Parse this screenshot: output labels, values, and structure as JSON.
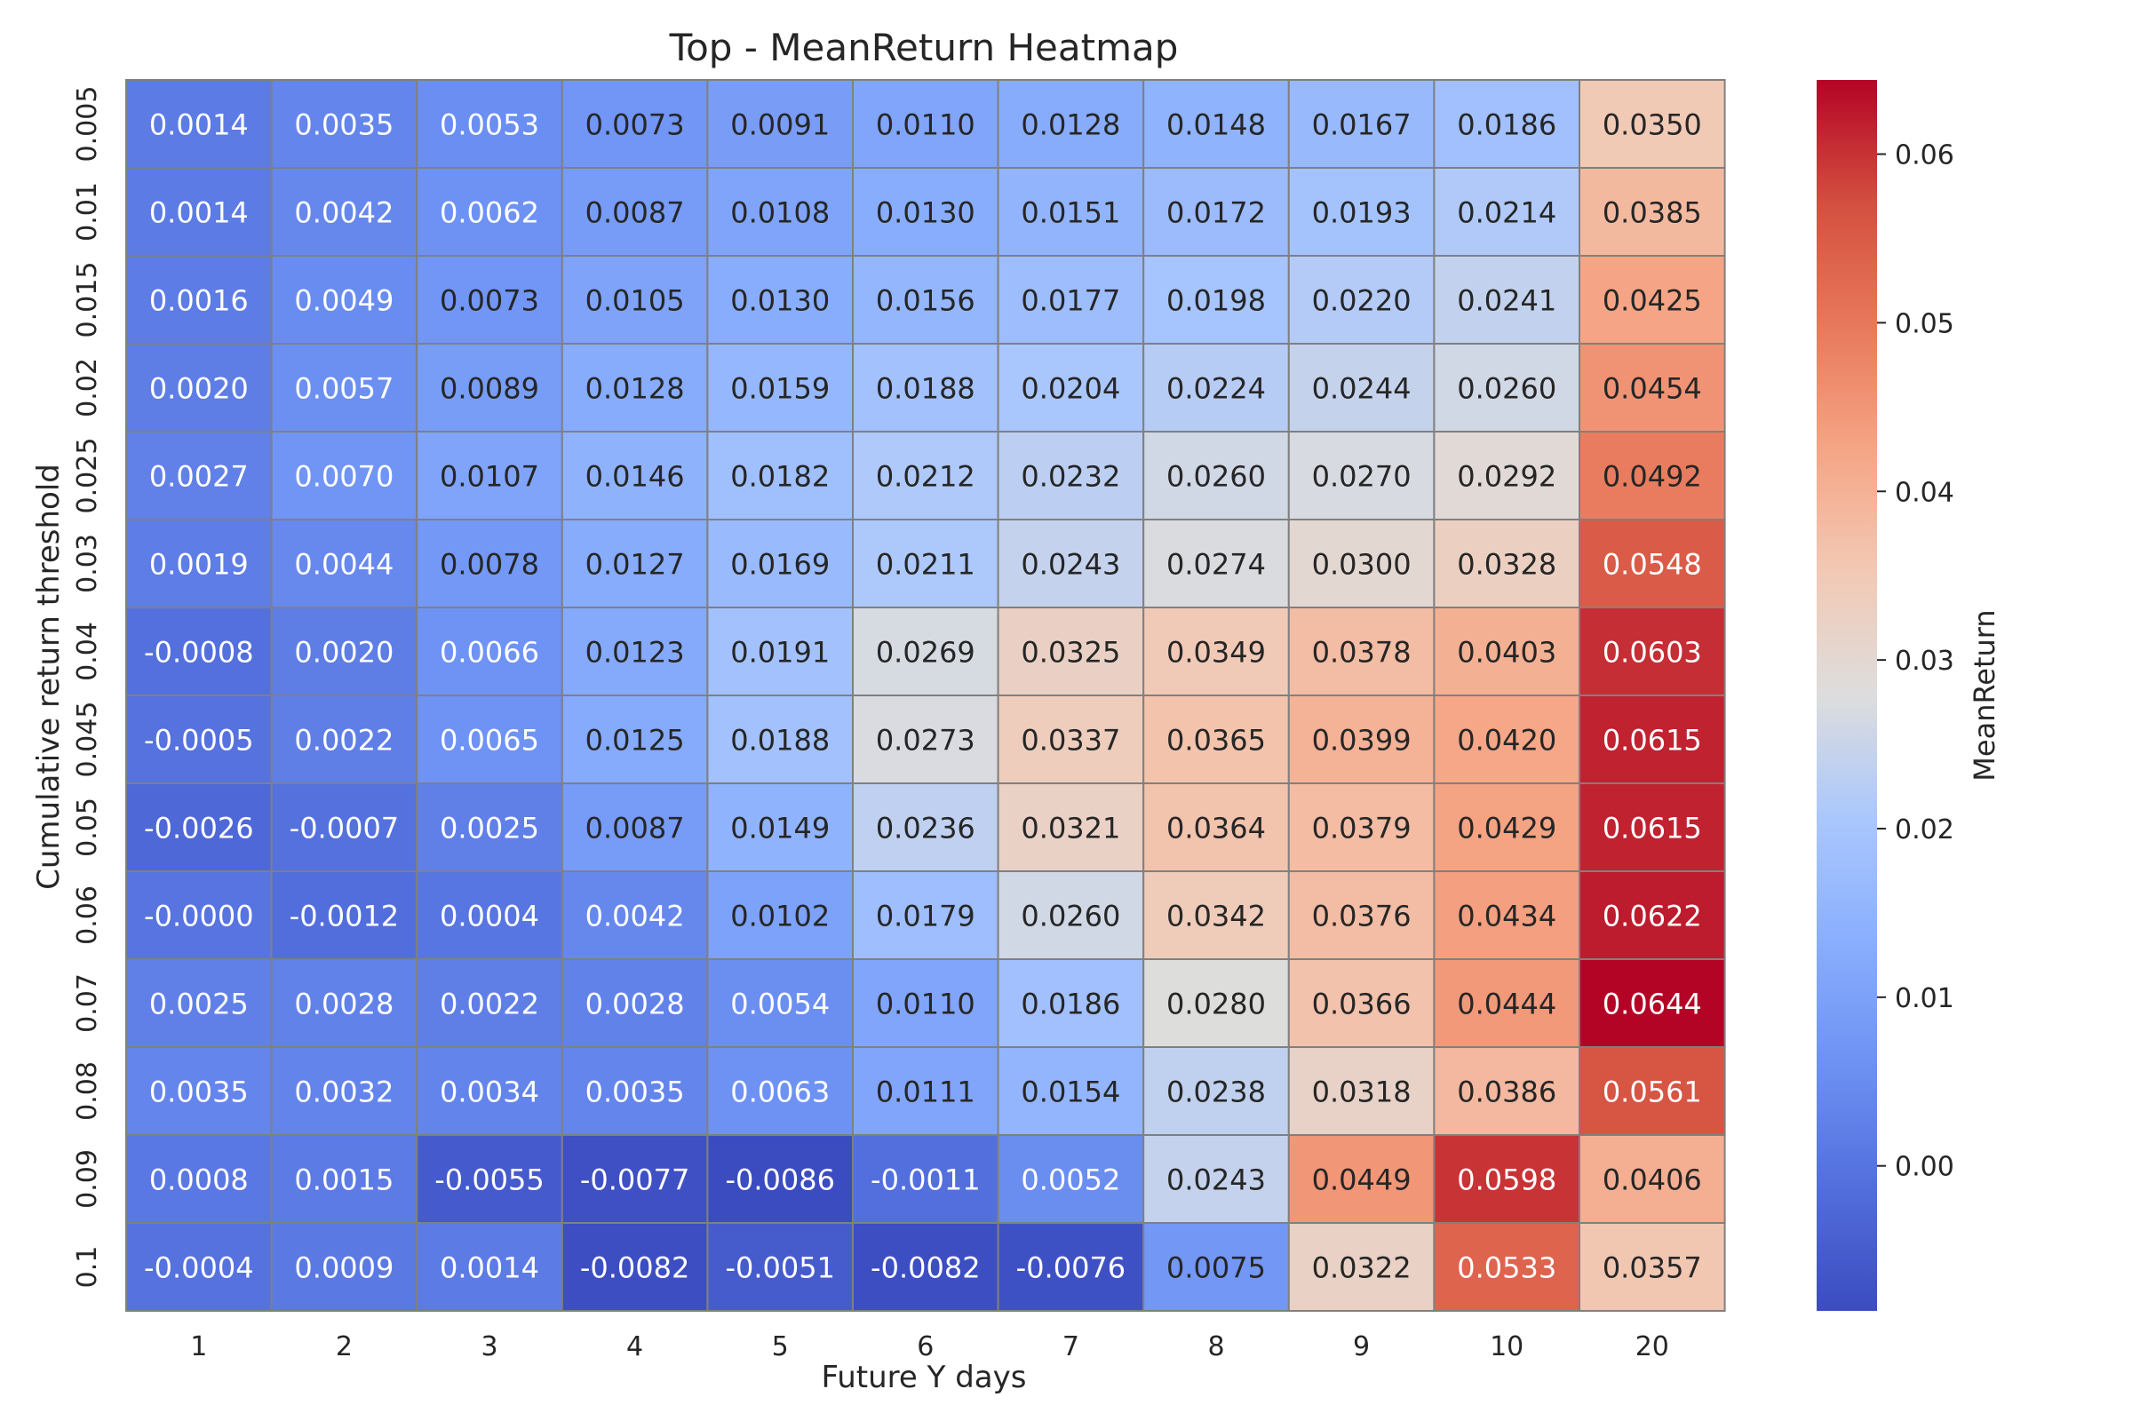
{
  "chart_data": {
    "type": "heatmap",
    "title": "Top - MeanReturn Heatmap",
    "xlabel": "Future Y days",
    "ylabel": "Cumulative return threshold",
    "x_categories": [
      "1",
      "2",
      "3",
      "4",
      "5",
      "6",
      "7",
      "8",
      "9",
      "10",
      "20"
    ],
    "y_categories": [
      "0.005",
      "0.01",
      "0.015",
      "0.02",
      "0.025",
      "0.03",
      "0.04",
      "0.045",
      "0.05",
      "0.06",
      "0.07",
      "0.08",
      "0.09",
      "0.1"
    ],
    "values": [
      [
        0.0014,
        0.0035,
        0.0053,
        0.0073,
        0.0091,
        0.011,
        0.0128,
        0.0148,
        0.0167,
        0.0186,
        0.035
      ],
      [
        0.0014,
        0.0042,
        0.0062,
        0.0087,
        0.0108,
        0.013,
        0.0151,
        0.0172,
        0.0193,
        0.0214,
        0.0385
      ],
      [
        0.0016,
        0.0049,
        0.0073,
        0.0105,
        0.013,
        0.0156,
        0.0177,
        0.0198,
        0.022,
        0.0241,
        0.0425
      ],
      [
        0.002,
        0.0057,
        0.0089,
        0.0128,
        0.0159,
        0.0188,
        0.0204,
        0.0224,
        0.0244,
        0.026,
        0.0454
      ],
      [
        0.0027,
        0.007,
        0.0107,
        0.0146,
        0.0182,
        0.0212,
        0.0232,
        0.026,
        0.027,
        0.0292,
        0.0492
      ],
      [
        0.0019,
        0.0044,
        0.0078,
        0.0127,
        0.0169,
        0.0211,
        0.0243,
        0.0274,
        0.03,
        0.0328,
        0.0548
      ],
      [
        -0.0008,
        0.002,
        0.0066,
        0.0123,
        0.0191,
        0.0269,
        0.0325,
        0.0349,
        0.0378,
        0.0403,
        0.0603
      ],
      [
        -0.0005,
        0.0022,
        0.0065,
        0.0125,
        0.0188,
        0.0273,
        0.0337,
        0.0365,
        0.0399,
        0.042,
        0.0615
      ],
      [
        -0.0026,
        -0.0007,
        0.0025,
        0.0087,
        0.0149,
        0.0236,
        0.0321,
        0.0364,
        0.0379,
        0.0429,
        0.0615
      ],
      [
        -0.0,
        -0.0012,
        0.0004,
        0.0042,
        0.0102,
        0.0179,
        0.026,
        0.0342,
        0.0376,
        0.0434,
        0.0622
      ],
      [
        0.0025,
        0.0028,
        0.0022,
        0.0028,
        0.0054,
        0.011,
        0.0186,
        0.028,
        0.0366,
        0.0444,
        0.0644
      ],
      [
        0.0035,
        0.0032,
        0.0034,
        0.0035,
        0.0063,
        0.0111,
        0.0154,
        0.0238,
        0.0318,
        0.0386,
        0.0561
      ],
      [
        0.0008,
        0.0015,
        -0.0055,
        -0.0077,
        -0.0086,
        -0.0011,
        0.0052,
        0.0243,
        0.0449,
        0.0598,
        0.0406
      ],
      [
        -0.0004,
        0.0009,
        0.0014,
        -0.0082,
        -0.0051,
        -0.0082,
        -0.0076,
        0.0075,
        0.0322,
        0.0533,
        0.0357
      ]
    ],
    "cell_labels": [
      [
        "0.0014",
        "0.0035",
        "0.0053",
        "0.0073",
        "0.0091",
        "0.0110",
        "0.0128",
        "0.0148",
        "0.0167",
        "0.0186",
        "0.0350"
      ],
      [
        "0.0014",
        "0.0042",
        "0.0062",
        "0.0087",
        "0.0108",
        "0.0130",
        "0.0151",
        "0.0172",
        "0.0193",
        "0.0214",
        "0.0385"
      ],
      [
        "0.0016",
        "0.0049",
        "0.0073",
        "0.0105",
        "0.0130",
        "0.0156",
        "0.0177",
        "0.0198",
        "0.0220",
        "0.0241",
        "0.0425"
      ],
      [
        "0.0020",
        "0.0057",
        "0.0089",
        "0.0128",
        "0.0159",
        "0.0188",
        "0.0204",
        "0.0224",
        "0.0244",
        "0.0260",
        "0.0454"
      ],
      [
        "0.0027",
        "0.0070",
        "0.0107",
        "0.0146",
        "0.0182",
        "0.0212",
        "0.0232",
        "0.0260",
        "0.0270",
        "0.0292",
        "0.0492"
      ],
      [
        "0.0019",
        "0.0044",
        "0.0078",
        "0.0127",
        "0.0169",
        "0.0211",
        "0.0243",
        "0.0274",
        "0.0300",
        "0.0328",
        "0.0548"
      ],
      [
        "-0.0008",
        "0.0020",
        "0.0066",
        "0.0123",
        "0.0191",
        "0.0269",
        "0.0325",
        "0.0349",
        "0.0378",
        "0.0403",
        "0.0603"
      ],
      [
        "-0.0005",
        "0.0022",
        "0.0065",
        "0.0125",
        "0.0188",
        "0.0273",
        "0.0337",
        "0.0365",
        "0.0399",
        "0.0420",
        "0.0615"
      ],
      [
        "-0.0026",
        "-0.0007",
        "0.0025",
        "0.0087",
        "0.0149",
        "0.0236",
        "0.0321",
        "0.0364",
        "0.0379",
        "0.0429",
        "0.0615"
      ],
      [
        "-0.0000",
        "-0.0012",
        "0.0004",
        "0.0042",
        "0.0102",
        "0.0179",
        "0.0260",
        "0.0342",
        "0.0376",
        "0.0434",
        "0.0622"
      ],
      [
        "0.0025",
        "0.0028",
        "0.0022",
        "0.0028",
        "0.0054",
        "0.0110",
        "0.0186",
        "0.0280",
        "0.0366",
        "0.0444",
        "0.0644"
      ],
      [
        "0.0035",
        "0.0032",
        "0.0034",
        "0.0035",
        "0.0063",
        "0.0111",
        "0.0154",
        "0.0238",
        "0.0318",
        "0.0386",
        "0.0561"
      ],
      [
        "0.0008",
        "0.0015",
        "-0.0055",
        "-0.0077",
        "-0.0086",
        "-0.0011",
        "0.0052",
        "0.0243",
        "0.0449",
        "0.0598",
        "0.0406"
      ],
      [
        "-0.0004",
        "0.0009",
        "0.0014",
        "-0.0082",
        "-0.0051",
        "-0.0082",
        "-0.0076",
        "0.0075",
        "0.0322",
        "0.0533",
        "0.0357"
      ]
    ],
    "colorbar": {
      "label": "MeanReturn",
      "colormap": "coolwarm",
      "vmin": -0.0086,
      "vmax": 0.0644,
      "ticks": [
        0.0,
        0.01,
        0.02,
        0.03,
        0.04,
        0.05,
        0.06
      ],
      "tick_labels": [
        "0.00",
        "0.01",
        "0.02",
        "0.03",
        "0.04",
        "0.05",
        "0.06"
      ]
    },
    "grid": false,
    "cell_border_color": "#808080"
  }
}
